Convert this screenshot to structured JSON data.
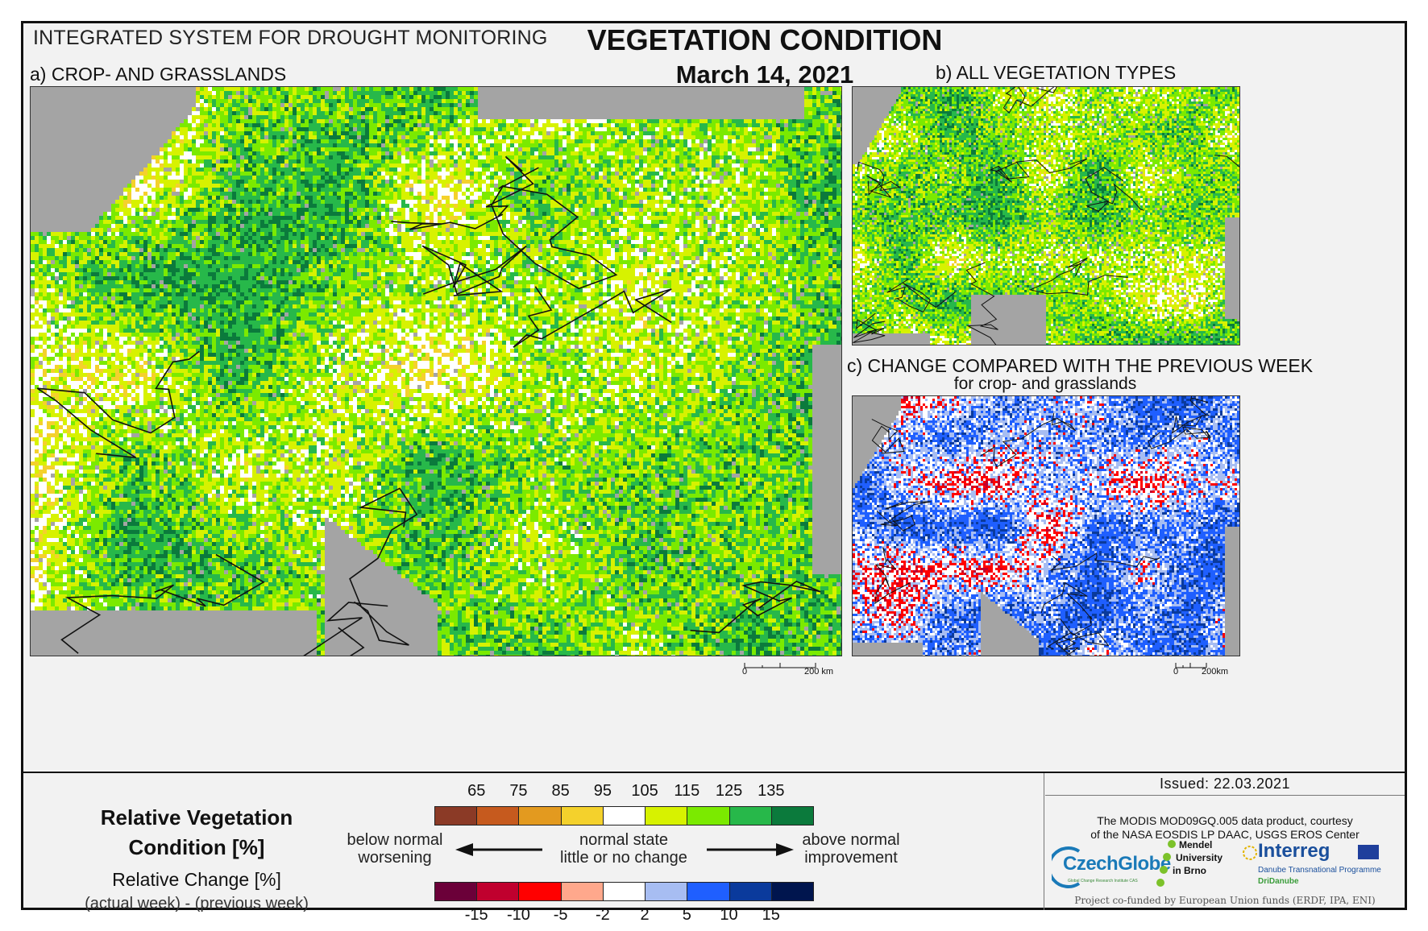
{
  "header": {
    "system": "INTEGRATED SYSTEM FOR DROUGHT MONITORING",
    "title": "VEGETATION CONDITION",
    "date": "March 14, 2021"
  },
  "panels": {
    "a": {
      "label": "a) CROP- AND GRASSLANDS",
      "scale_zero": "0",
      "scale_end": "200 km"
    },
    "b": {
      "label": "b) ALL VEGETATION TYPES"
    },
    "c": {
      "label": "c) CHANGE COMPARED WITH THE PREVIOUS WEEK",
      "sublabel": "for crop- and grasslands",
      "scale_zero": "0",
      "scale_end": "200km"
    }
  },
  "legend": {
    "rvc_title_line1": "Relative Vegetation",
    "rvc_title_line2": "Condition [%]",
    "change_title": "Relative Change [%]",
    "change_formula": "(actual week) - (previous week)",
    "rvc_ticks": [
      "65",
      "75",
      "85",
      "95",
      "105",
      "115",
      "125",
      "135"
    ],
    "rvc_colors": [
      "#8b3a26",
      "#c65a1e",
      "#e39a1f",
      "#f4d12c",
      "#ffffff",
      "#d7f200",
      "#7bea00",
      "#27b84a",
      "#0b7a3c"
    ],
    "change_ticks": [
      "-15",
      "-10",
      "-5",
      "-2",
      "2",
      "5",
      "10",
      "15"
    ],
    "change_colors": [
      "#6b0039",
      "#c0002e",
      "#ff0000",
      "#ffa88c",
      "#ffffff",
      "#a7bdf2",
      "#1f5fff",
      "#0a3a9c",
      "#00154e"
    ],
    "left_line1": "below normal",
    "left_line2": "worsening",
    "center_line1": "normal state",
    "center_line2": "little or no change",
    "right_line1": "above normal",
    "right_line2": "improvement"
  },
  "info": {
    "issued": "Issued: 22.03.2021",
    "credit_line1": "The MODIS MOD09GQ.005 data product, courtesy",
    "credit_line2": "of the NASA EOSDIS LP DAAC, USGS EROS Center",
    "logo_czechglobe": "CzechGlobe",
    "logo_czechglobe_sub": "Global Change Research Institute CAS",
    "logo_mendel_line1": "Mendel",
    "logo_mendel_line2": "University",
    "logo_mendel_line3": "in Brno",
    "logo_interreg": "Interreg",
    "logo_interreg_sub1": "Danube Transnational Programme",
    "logo_interreg_sub2": "DriDanube",
    "funded": "Project co-funded by European Union funds (ERDF, IPA, ENI)"
  }
}
